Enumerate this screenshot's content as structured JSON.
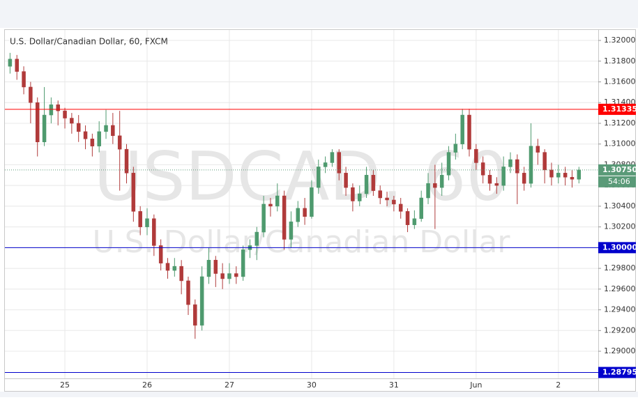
{
  "chart_data": {
    "type": "candlestick",
    "title": "U.S. Dollar/Canadian Dollar, 60, FXCM",
    "watermark": "USDCAD, 60",
    "watermark_subtitle": "U.S. Dollar/Canadian Dollar",
    "up_color": "#4e9a6e",
    "down_color": "#b03a3a",
    "grid": true,
    "categories": [
      null,
      null,
      null,
      null,
      null,
      null,
      null,
      null,
      "25",
      null,
      null,
      null,
      null,
      null,
      null,
      null,
      null,
      null,
      null,
      null,
      "26",
      null,
      null,
      null,
      null,
      null,
      null,
      null,
      null,
      null,
      null,
      null,
      "27",
      null,
      null,
      null,
      null,
      null,
      null,
      null,
      null,
      null,
      null,
      null,
      "30",
      null,
      null,
      null,
      null,
      null,
      null,
      null,
      null,
      null,
      null,
      null,
      "31",
      null,
      null,
      null,
      null,
      null,
      null,
      null,
      null,
      null,
      null,
      null,
      "Jun",
      null,
      null,
      null,
      null,
      null,
      null,
      null,
      null,
      null,
      null,
      null,
      "2",
      null,
      null,
      null
    ],
    "open": [
      1.3175,
      1.3182,
      1.317,
      1.3155,
      1.314,
      1.3102,
      1.3128,
      1.3138,
      1.3132,
      1.3125,
      1.312,
      1.3112,
      1.3105,
      1.3098,
      1.3112,
      1.3118,
      1.3108,
      1.3095,
      1.3072,
      1.3035,
      1.302,
      1.3028,
      1.3002,
      1.2985,
      1.2978,
      1.2982,
      1.2968,
      1.2945,
      1.2925,
      1.2972,
      1.2988,
      1.2975,
      1.297,
      1.2975,
      1.2972,
      1.2998,
      1.3002,
      1.3015,
      1.3042,
      1.304,
      1.305,
      1.3008,
      1.3025,
      1.3038,
      1.303,
      1.3058,
      1.3078,
      1.3082,
      1.3092,
      1.3072,
      1.3058,
      1.3045,
      1.3052,
      1.307,
      1.3055,
      1.3048,
      1.3046,
      1.3042,
      1.3035,
      1.3022,
      1.3028,
      1.3048,
      1.3062,
      1.3058,
      1.307,
      1.3092,
      1.31,
      1.3128,
      1.3095,
      1.3082,
      1.307,
      1.3062,
      1.306,
      1.3078,
      1.3085,
      1.3072,
      1.3062,
      1.3098,
      1.3092,
      1.3075,
      1.3068,
      1.3072,
      1.3068,
      1.3066
    ],
    "high": [
      1.3188,
      1.3186,
      1.3175,
      1.316,
      1.3145,
      1.3155,
      1.3145,
      1.3142,
      1.3135,
      1.313,
      1.3128,
      1.3118,
      1.311,
      1.3122,
      1.3133,
      1.313,
      1.3132,
      1.31,
      1.3078,
      1.304,
      1.3038,
      1.3032,
      1.3008,
      1.299,
      1.299,
      1.2988,
      1.2972,
      1.295,
      1.2982,
      1.3,
      1.2992,
      1.2985,
      1.2985,
      1.2982,
      1.3002,
      1.3008,
      1.302,
      1.305,
      1.3048,
      1.3062,
      1.3055,
      1.3035,
      1.3045,
      1.3048,
      1.3065,
      1.3085,
      1.3088,
      1.3095,
      1.3095,
      1.3078,
      1.3062,
      1.306,
      1.3078,
      1.3075,
      1.306,
      1.3054,
      1.305,
      1.3048,
      1.3038,
      1.3036,
      1.3055,
      1.3072,
      1.308,
      1.3082,
      1.3098,
      1.311,
      1.3134,
      1.3134,
      1.31,
      1.3088,
      1.3075,
      1.3068,
      1.3088,
      1.3092,
      1.309,
      1.3078,
      1.312,
      1.3105,
      1.3095,
      1.3082,
      1.308,
      1.3078,
      1.3075,
      1.3078
    ],
    "low": [
      1.3168,
      1.3162,
      1.3148,
      1.312,
      1.3088,
      1.3098,
      1.312,
      1.3118,
      1.3115,
      1.311,
      1.3102,
      1.3095,
      1.3088,
      1.3092,
      1.3105,
      1.31,
      1.3055,
      1.3062,
      1.3025,
      1.3012,
      1.3012,
      1.2992,
      1.2978,
      1.297,
      1.2972,
      1.2955,
      1.2935,
      1.2912,
      1.292,
      1.2965,
      1.2962,
      1.296,
      1.2965,
      1.2965,
      1.2968,
      1.299,
      1.2988,
      1.301,
      1.303,
      1.3035,
      1.2998,
      1.3,
      1.302,
      1.3022,
      1.3028,
      1.3052,
      1.3072,
      1.3078,
      1.3065,
      1.305,
      1.3035,
      1.304,
      1.3048,
      1.305,
      1.3042,
      1.304,
      1.3035,
      1.3028,
      1.3015,
      1.3018,
      1.3025,
      1.3042,
      1.3018,
      1.305,
      1.3065,
      1.3085,
      1.3095,
      1.3088,
      1.3075,
      1.3062,
      1.3055,
      1.3052,
      1.3055,
      1.3072,
      1.3042,
      1.3055,
      1.3058,
      1.308,
      1.3062,
      1.306,
      1.3062,
      1.306,
      1.3058,
      1.3062
    ],
    "close": [
      1.3182,
      1.317,
      1.3155,
      1.314,
      1.3102,
      1.3128,
      1.3138,
      1.3132,
      1.3125,
      1.312,
      1.3112,
      1.3105,
      1.3098,
      1.3112,
      1.3118,
      1.3108,
      1.3095,
      1.3072,
      1.3035,
      1.302,
      1.3028,
      1.3002,
      1.2985,
      1.2978,
      1.2982,
      1.2968,
      1.2945,
      1.2925,
      1.2972,
      1.2988,
      1.2975,
      1.297,
      1.2975,
      1.2972,
      1.2998,
      1.3002,
      1.3015,
      1.3042,
      1.304,
      1.305,
      1.3008,
      1.3025,
      1.3038,
      1.303,
      1.3058,
      1.3078,
      1.3082,
      1.3092,
      1.3072,
      1.3058,
      1.3045,
      1.3052,
      1.307,
      1.3055,
      1.3048,
      1.3046,
      1.3042,
      1.3035,
      1.3022,
      1.3028,
      1.3048,
      1.3062,
      1.3058,
      1.307,
      1.3092,
      1.31,
      1.3128,
      1.3095,
      1.3082,
      1.307,
      1.3062,
      1.306,
      1.3078,
      1.3085,
      1.3072,
      1.3062,
      1.3098,
      1.3092,
      1.3075,
      1.3068,
      1.3072,
      1.3068,
      1.3066,
      1.3075
    ],
    "ylim": [
      1.28738,
      1.32101
    ],
    "yticks": [
      {
        "value": 1.29,
        "label": "1.29000"
      },
      {
        "value": 1.292,
        "label": "1.29200"
      },
      {
        "value": 1.294,
        "label": "1.29400"
      },
      {
        "value": 1.296,
        "label": "1.29600"
      },
      {
        "value": 1.298,
        "label": "1.29800"
      },
      {
        "value": 1.3,
        "label": "1.30000"
      },
      {
        "value": 1.302,
        "label": "1.30200"
      },
      {
        "value": 1.304,
        "label": "1.30400"
      },
      {
        "value": 1.306,
        "label": "1.30600"
      },
      {
        "value": 1.308,
        "label": "1.30800"
      },
      {
        "value": 1.31,
        "label": "1.31000"
      },
      {
        "value": 1.312,
        "label": "1.31200"
      },
      {
        "value": 1.314,
        "label": "1.31400"
      },
      {
        "value": 1.316,
        "label": "1.31600"
      },
      {
        "value": 1.318,
        "label": "1.31800"
      },
      {
        "value": 1.32,
        "label": "1.32000"
      }
    ],
    "hlines": [
      {
        "value": 1.31335,
        "label": "1.31335",
        "color": "#ff0000"
      },
      {
        "value": 1.3,
        "label": "1.30000",
        "color": "#0000cc"
      },
      {
        "value": 1.28795,
        "label": "1.28795",
        "color": "#0000cc"
      }
    ],
    "last_price": {
      "value": 1.3075,
      "label": "1.30750",
      "countdown": "54:06",
      "color": "#5a9a78"
    }
  }
}
